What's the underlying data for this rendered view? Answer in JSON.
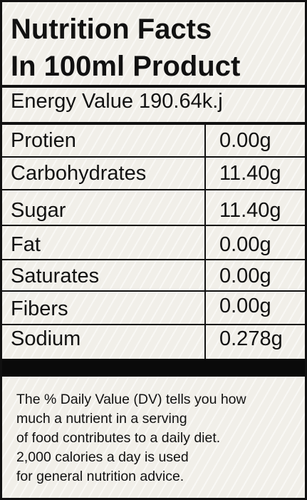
{
  "title": {
    "line1": "Nutrition Facts",
    "line2": "In 100ml Product"
  },
  "energy": "Energy Value 190.64k.j",
  "rows": [
    {
      "name": "Protien",
      "value": "0.00g"
    },
    {
      "name": "Carbohydrates",
      "value": "11.40g"
    },
    {
      "name": "Sugar",
      "value": "11.40g"
    },
    {
      "name": "Fat",
      "value": "0.00g"
    },
    {
      "name": "Saturates",
      "value": "0.00g"
    },
    {
      "name": "Fibers",
      "value": "0.00g"
    },
    {
      "name": "Sodium",
      "value": "0.278g"
    }
  ],
  "footnote": [
    "The % Daily Value (DV) tells you how",
    "much a nutrient in a serving",
    "of food contributes to a daily diet.",
    "2,000 calories a day is used",
    "for general nutrition advice."
  ]
}
